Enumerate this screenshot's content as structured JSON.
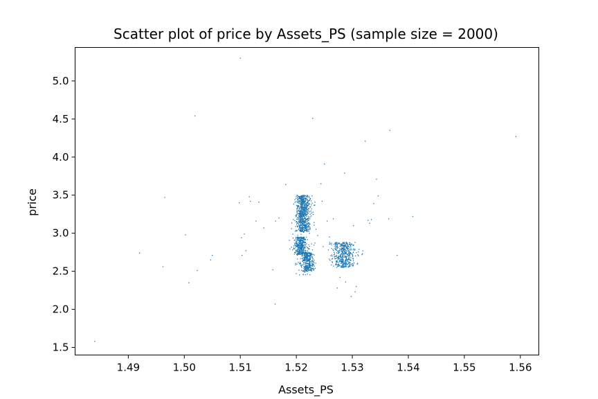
{
  "chart_data": {
    "type": "scatter",
    "title": "Scatter plot of price by Assets_PS (sample size = 2000)",
    "xlabel": "Assets_PS",
    "ylabel": "price",
    "xlim": [
      1.4805,
      1.5633
    ],
    "ylim": [
      1.4,
      5.44
    ],
    "x_ticks": [
      1.49,
      1.5,
      1.51,
      1.52,
      1.53,
      1.54,
      1.55,
      1.56
    ],
    "x_tick_labels": [
      "1.49",
      "1.50",
      "1.51",
      "1.52",
      "1.53",
      "1.54",
      "1.55",
      "1.56"
    ],
    "y_ticks": [
      1.5,
      2.0,
      2.5,
      3.0,
      3.5,
      4.0,
      4.5,
      5.0
    ],
    "y_tick_labels": [
      "1.5",
      "2.0",
      "2.5",
      "3.0",
      "3.5",
      "4.0",
      "4.5",
      "5.0"
    ],
    "grid": false,
    "marker_color": "#1f77b4",
    "series": [
      {
        "points": [
          [
            1.484,
            1.58
          ],
          [
            1.492,
            2.74
          ],
          [
            1.4962,
            2.56
          ],
          [
            1.4965,
            3.47
          ],
          [
            1.5002,
            2.98
          ],
          [
            1.5008,
            2.35
          ],
          [
            1.5019,
            4.54
          ],
          [
            1.5023,
            2.51
          ],
          [
            1.5047,
            2.65
          ],
          [
            1.505,
            2.71
          ],
          [
            1.51,
            5.3
          ],
          [
            1.5098,
            3.4
          ],
          [
            1.5102,
            2.94
          ],
          [
            1.5103,
            2.71
          ],
          [
            1.5107,
            2.99
          ],
          [
            1.511,
            2.77
          ],
          [
            1.5116,
            3.48
          ],
          [
            1.5118,
            3.42
          ],
          [
            1.5128,
            3.16
          ],
          [
            1.5133,
            3.41
          ],
          [
            1.5142,
            3.07
          ],
          [
            1.5158,
            2.52
          ],
          [
            1.5162,
            2.07
          ],
          [
            1.5163,
            3.16
          ],
          [
            1.5169,
            3.2
          ],
          [
            1.5181,
            3.64
          ],
          [
            1.5229,
            4.51
          ],
          [
            1.5233,
            3.37
          ],
          [
            1.5244,
            3.65
          ],
          [
            1.5246,
            3.42
          ],
          [
            1.525,
            3.91
          ],
          [
            1.5255,
            3.16
          ],
          [
            1.5259,
            2.95
          ],
          [
            1.5263,
            2.8
          ],
          [
            1.5266,
            3.19
          ],
          [
            1.5273,
            2.28
          ],
          [
            1.5278,
            2.42
          ],
          [
            1.5286,
            3.79
          ],
          [
            1.5288,
            2.36
          ],
          [
            1.5298,
            2.17
          ],
          [
            1.5302,
            3.1
          ],
          [
            1.5305,
            2.23
          ],
          [
            1.5307,
            2.3
          ],
          [
            1.5318,
            2.73
          ],
          [
            1.5323,
            4.21
          ],
          [
            1.5328,
            3.17
          ],
          [
            1.5331,
            3.13
          ],
          [
            1.5334,
            3.18
          ],
          [
            1.5338,
            3.39
          ],
          [
            1.5343,
            3.71
          ],
          [
            1.5346,
            3.49
          ],
          [
            1.5365,
            3.19
          ],
          [
            1.5367,
            4.35
          ],
          [
            1.538,
            2.71
          ],
          [
            1.5408,
            3.22
          ],
          [
            1.5592,
            4.27
          ]
        ],
        "clusters": [
          {
            "x_center": 1.5212,
            "x_spread": 0.0011,
            "y_min": 3.02,
            "y_max": 3.5,
            "count": 690
          },
          {
            "x_center": 1.5207,
            "x_spread": 0.001,
            "y_min": 2.72,
            "y_max": 2.95,
            "count": 330
          },
          {
            "x_center": 1.522,
            "x_spread": 0.001,
            "y_min": 2.5,
            "y_max": 2.75,
            "count": 320
          },
          {
            "x_center": 1.5285,
            "x_spread": 0.0018,
            "y_min": 2.55,
            "y_max": 2.88,
            "count": 460
          },
          {
            "x_center": 1.5215,
            "x_spread": 0.0016,
            "y_min": 2.45,
            "y_max": 3.45,
            "count": 144
          }
        ]
      }
    ]
  }
}
